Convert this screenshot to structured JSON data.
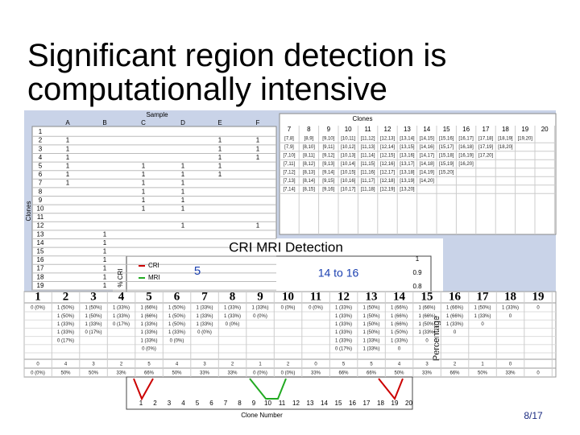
{
  "title_lines": [
    "Significant region detection is",
    "computationally intensive"
  ],
  "sample_sheet": {
    "header": "Sample",
    "side_label": "Clones",
    "columns": [
      "A",
      "B",
      "C",
      "D",
      "E",
      "F"
    ],
    "row_numbers": [
      1,
      2,
      3,
      4,
      5,
      6,
      7,
      8,
      9,
      10,
      11,
      12,
      13,
      14,
      15,
      16,
      17,
      18,
      19
    ],
    "cells": [
      [
        null,
        null,
        null,
        null,
        null,
        null
      ],
      [
        "1",
        null,
        null,
        null,
        "1",
        "1"
      ],
      [
        "1",
        null,
        null,
        null,
        "1",
        "1"
      ],
      [
        "1",
        null,
        null,
        null,
        "1",
        "1"
      ],
      [
        "1",
        null,
        "1",
        "1",
        "1",
        null
      ],
      [
        "1",
        null,
        "1",
        "1",
        "1",
        null
      ],
      [
        "1",
        null,
        "1",
        "1",
        null,
        null
      ],
      [
        null,
        null,
        "1",
        "1",
        null,
        null
      ],
      [
        null,
        null,
        "1",
        "1",
        null,
        null
      ],
      [
        null,
        null,
        "1",
        "1",
        null,
        null
      ],
      [
        null,
        null,
        null,
        null,
        null,
        null
      ],
      [
        null,
        null,
        null,
        "1",
        null,
        "1"
      ],
      [
        null,
        "1",
        null,
        null,
        null,
        null
      ],
      [
        null,
        "1",
        null,
        null,
        null,
        null
      ],
      [
        null,
        "1",
        null,
        null,
        null,
        null
      ],
      [
        null,
        "1",
        null,
        null,
        null,
        null
      ],
      [
        null,
        "1",
        null,
        null,
        null,
        null
      ],
      [
        null,
        "1",
        null,
        null,
        null,
        null
      ],
      [
        null,
        "1",
        null,
        null,
        null,
        null
      ]
    ]
  },
  "clones_sheet": {
    "header": "Clones",
    "columns": [
      7,
      8,
      9,
      10,
      11,
      12,
      13,
      14,
      15,
      16,
      17,
      18,
      19,
      20
    ],
    "rows": [
      [
        "[7,8]",
        "[8,9]",
        "[9,10]",
        "[10,11]",
        "[11,12]",
        "[12,13]",
        "[13,14]",
        "[14,15]",
        "[15,16]",
        "[16,17]",
        "[17,18]",
        "[18,19]",
        "[19,20]"
      ],
      [
        "[7,9]",
        "[8,10]",
        "[9,11]",
        "[10,12]",
        "[11,13]",
        "[12,14]",
        "[13,15]",
        "[14,16]",
        "[15,17]",
        "[16,18]",
        "[17,19]",
        "[18,20]"
      ],
      [
        "[7,10]",
        "[8,11]",
        "[9,12]",
        "[10,13]",
        "[11,14]",
        "[12,15]",
        "[13,16]",
        "[14,17]",
        "[15,18]",
        "[16,19]",
        "[17,20]"
      ],
      [
        "[7,11]",
        "[8,12]",
        "[9,13]",
        "[10,14]",
        "[11,15]",
        "[12,16]",
        "[13,17]",
        "[14,18]",
        "[15,19]",
        "[16,20]"
      ],
      [
        "[7,12]",
        "[8,13]",
        "[9,14]",
        "[10,15]",
        "[11,16]",
        "[12,17]",
        "[13,18]",
        "[14,19]",
        "[15,20]"
      ],
      [
        "[7,13]",
        "[8,14]",
        "[9,15]",
        "[10,16]",
        "[11,17]",
        "[12,18]",
        "[13,19]",
        "[14,20]"
      ],
      [
        "[7,14]",
        "[8,15]",
        "[9,16]",
        "[10,17]",
        "[11,18]",
        "[12,19]",
        "[13,20]"
      ]
    ]
  },
  "detection_chart": {
    "title": "CRI MRI Detection",
    "legend": [
      "CRI",
      "MRI"
    ],
    "y_label": "% CRI",
    "y2_label": "Percentage",
    "y2_ticks": [
      "1",
      "0.9",
      "0.8"
    ],
    "annotations": [
      "5",
      "14 to 16"
    ],
    "x_label": "Clone Number",
    "x_ticks": [
      1,
      2,
      3,
      4,
      5,
      6,
      7,
      8,
      9,
      10,
      11,
      12,
      13,
      14,
      15,
      16,
      17,
      18,
      19,
      20
    ]
  },
  "result_table": {
    "header": [
      1,
      2,
      3,
      4,
      5,
      6,
      7,
      8,
      9,
      10,
      11,
      12,
      13,
      14,
      15,
      16,
      17,
      18,
      19
    ],
    "rows": [
      [
        "0 (0%)",
        "1 (50%)",
        "1 (50%)",
        "1 (33%)",
        "1 (66%)",
        "1 (50%)",
        "1 (33%)",
        "1 (33%)",
        "1 (33%)",
        "0 (0%)",
        "0 (0%)",
        "1 (33%)",
        "1 (50%)",
        "1 (66%)",
        "1 (66%)",
        "1 (66%)",
        "1 (50%)",
        "1 (33%)",
        "0"
      ],
      [
        null,
        "1 (50%)",
        "1 (50%)",
        "1 (33%)",
        "1 (66%)",
        "1 (50%)",
        "1 (33%)",
        "1 (33%)",
        "0 (0%)",
        null,
        null,
        "1 (33%)",
        "1 (50%)",
        "1 (66%)",
        "1 (66%)",
        "1 (66%)",
        "1 (33%)",
        "0",
        null
      ],
      [
        null,
        "1 (33%)",
        "1 (33%)",
        "0 (17%)",
        "1 (33%)",
        "1 (50%)",
        "1 (33%)",
        "0 (0%)",
        null,
        null,
        null,
        "1 (33%)",
        "1 (50%)",
        "1 (66%)",
        "1 (50%)",
        "1 (33%)",
        "0",
        null,
        null
      ],
      [
        null,
        "1 (33%)",
        "0 (17%)",
        null,
        "1 (33%)",
        "1 (33%)",
        "0 (0%)",
        null,
        null,
        null,
        null,
        "1 (33%)",
        "1 (50%)",
        "1 (50%)",
        "1 (33%)",
        "0",
        null,
        null,
        null
      ],
      [
        null,
        "0 (17%)",
        null,
        null,
        "1 (33%)",
        "0 (0%)",
        null,
        null,
        null,
        null,
        null,
        "1 (33%)",
        "1 (33%)",
        "1 (33%)",
        "0",
        null,
        null,
        null,
        null
      ],
      [
        null,
        null,
        null,
        null,
        "0 (0%)",
        null,
        null,
        null,
        null,
        null,
        null,
        "0 (17%)",
        "1 (33%)",
        "0",
        null,
        null,
        null,
        null,
        null
      ]
    ],
    "counts": [
      0,
      4,
      3,
      2,
      5,
      4,
      3,
      2,
      1,
      2,
      0,
      5,
      5,
      4,
      3,
      2,
      1,
      0,
      null
    ],
    "percentages": [
      "0 (0%)",
      "50%",
      "50%",
      "33%",
      "66%",
      "50%",
      "33%",
      "33%",
      "0 (0%)",
      "0 (0%)",
      "33%",
      "66%",
      "66%",
      "50%",
      "33%",
      "66%",
      "50%",
      "33%",
      "0"
    ]
  },
  "page_number": "8/17"
}
